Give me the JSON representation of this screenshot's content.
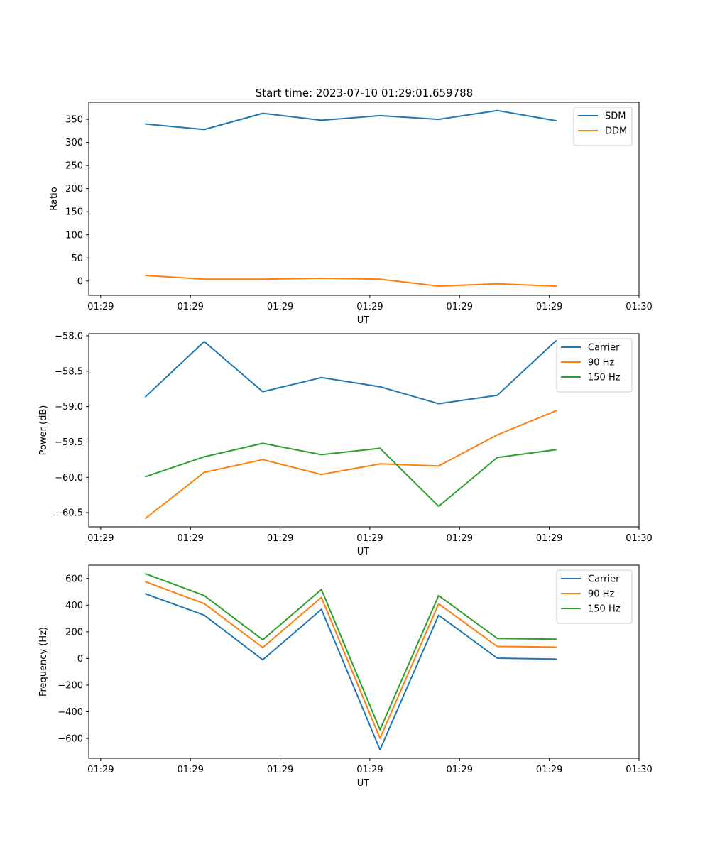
{
  "title": "Start time: 2023-07-10 01:29:01.659788",
  "chart_data": [
    {
      "type": "line",
      "xlabel": "UT",
      "ylabel": "Ratio",
      "xlim": [
        -0.2,
        9.0
      ],
      "ylim": [
        -31,
        387
      ],
      "x_ticks": [
        {
          "v": 0,
          "label": "01:29"
        },
        {
          "v": 1.5,
          "label": "01:29"
        },
        {
          "v": 3,
          "label": "01:29"
        },
        {
          "v": 4.5,
          "label": "01:29"
        },
        {
          "v": 6,
          "label": "01:29"
        },
        {
          "v": 7.5,
          "label": "01:29"
        },
        {
          "v": 9,
          "label": "01:30"
        }
      ],
      "y_ticks": [
        0,
        50,
        100,
        150,
        200,
        250,
        300,
        350
      ],
      "legend_position": "top-right",
      "x": [
        0.75,
        1.73,
        2.71,
        3.69,
        4.67,
        5.65,
        6.63,
        7.61
      ],
      "series": [
        {
          "name": "SDM",
          "color": "#1f77b4",
          "values": [
            340,
            328,
            363,
            348,
            358,
            350,
            369,
            347
          ]
        },
        {
          "name": "DDM",
          "color": "#ff7f0e",
          "values": [
            12,
            4,
            4,
            6,
            4,
            -11,
            -6,
            -11
          ]
        }
      ]
    },
    {
      "type": "line",
      "xlabel": "UT",
      "ylabel": "Power (dB)",
      "xlim": [
        -0.2,
        9.0
      ],
      "ylim": [
        -60.7,
        -57.97
      ],
      "x_ticks": [
        {
          "v": 0,
          "label": "01:29"
        },
        {
          "v": 1.5,
          "label": "01:29"
        },
        {
          "v": 3,
          "label": "01:29"
        },
        {
          "v": 4.5,
          "label": "01:29"
        },
        {
          "v": 6,
          "label": "01:29"
        },
        {
          "v": 7.5,
          "label": "01:29"
        },
        {
          "v": 9,
          "label": "01:30"
        }
      ],
      "y_ticks": [
        -60.5,
        -60.0,
        -59.5,
        -59.0,
        -58.5,
        -58.0
      ],
      "y_tick_labels": [
        "−60.5",
        "−60.0",
        "−59.5",
        "−59.0",
        "−58.5",
        "−58.0"
      ],
      "legend_position": "top-right",
      "x": [
        0.75,
        1.73,
        2.71,
        3.69,
        4.67,
        5.65,
        6.63,
        7.61
      ],
      "series": [
        {
          "name": "Carrier",
          "color": "#1f77b4",
          "values": [
            -58.86,
            -58.08,
            -58.79,
            -58.59,
            -58.72,
            -58.96,
            -58.84,
            -58.07
          ]
        },
        {
          "name": "90 Hz",
          "color": "#ff7f0e",
          "values": [
            -60.58,
            -59.93,
            -59.75,
            -59.96,
            -59.81,
            -59.84,
            -59.4,
            -59.06
          ]
        },
        {
          "name": "150 Hz",
          "color": "#2ca02c",
          "values": [
            -59.99,
            -59.71,
            -59.52,
            -59.68,
            -59.59,
            -60.41,
            -59.72,
            -59.61
          ]
        }
      ]
    },
    {
      "type": "line",
      "xlabel": "UT",
      "ylabel": "Frequency (Hz)",
      "xlim": [
        -0.2,
        9.0
      ],
      "ylim": [
        -749,
        700
      ],
      "x_ticks": [
        {
          "v": 0,
          "label": "01:29"
        },
        {
          "v": 1.5,
          "label": "01:29"
        },
        {
          "v": 3,
          "label": "01:29"
        },
        {
          "v": 4.5,
          "label": "01:29"
        },
        {
          "v": 6,
          "label": "01:29"
        },
        {
          "v": 7.5,
          "label": "01:29"
        },
        {
          "v": 9,
          "label": "01:30"
        }
      ],
      "y_ticks": [
        -600,
        -400,
        -200,
        0,
        200,
        400,
        600
      ],
      "y_tick_labels": [
        "−600",
        "−400",
        "−200",
        "0",
        "200",
        "400",
        "600"
      ],
      "legend_position": "top-right",
      "x": [
        0.75,
        1.73,
        2.71,
        3.69,
        4.67,
        5.65,
        6.63,
        7.61
      ],
      "series": [
        {
          "name": "Carrier",
          "color": "#1f77b4",
          "values": [
            485,
            325,
            -10,
            368,
            -685,
            325,
            2,
            -5
          ]
        },
        {
          "name": "90 Hz",
          "color": "#ff7f0e",
          "values": [
            575,
            412,
            82,
            458,
            -598,
            410,
            90,
            85
          ]
        },
        {
          "name": "150 Hz",
          "color": "#2ca02c",
          "values": [
            635,
            472,
            140,
            518,
            -535,
            472,
            150,
            145
          ]
        }
      ]
    }
  ]
}
